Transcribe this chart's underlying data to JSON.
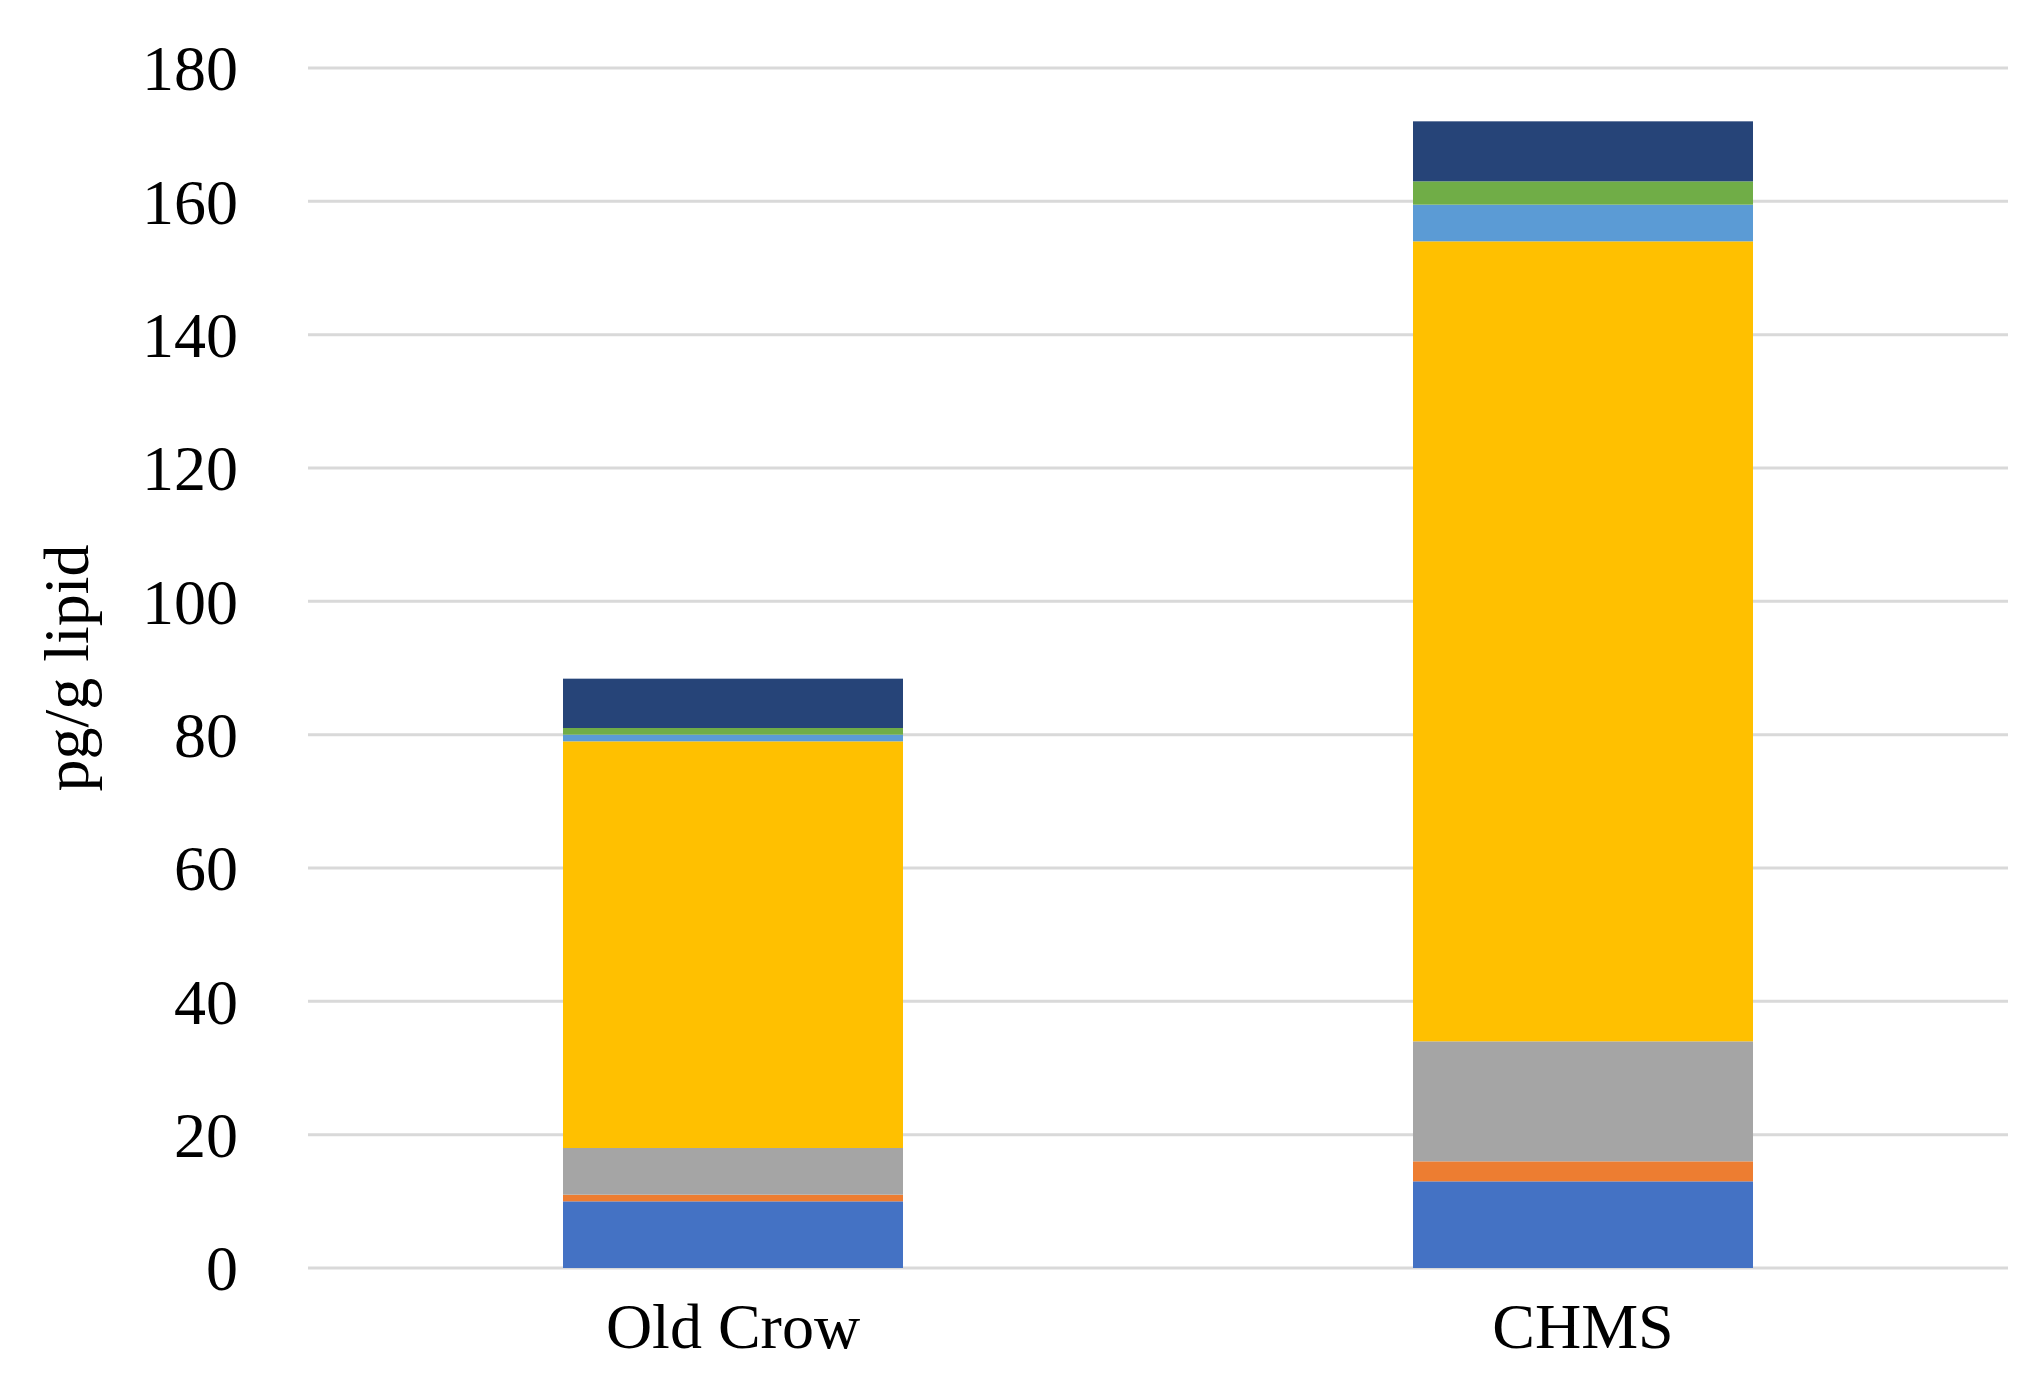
{
  "chart_data": {
    "type": "bar",
    "stacked": true,
    "ylabel": "pg/g lipid",
    "categories": [
      "Old Crow",
      "CHMS"
    ],
    "series": [
      {
        "color": "#4472c4",
        "values": [
          10,
          13
        ]
      },
      {
        "color": "#ed7d31",
        "values": [
          1,
          3
        ]
      },
      {
        "color": "#a5a5a5",
        "values": [
          7,
          18
        ]
      },
      {
        "color": "#ffc000",
        "values": [
          61,
          120
        ]
      },
      {
        "color": "#5b9bd5",
        "values": [
          1,
          5.5
        ]
      },
      {
        "color": "#70ad47",
        "values": [
          1,
          3.5
        ]
      },
      {
        "color": "#264478",
        "values": [
          7.4,
          9
        ]
      }
    ],
    "ylim": [
      0,
      180
    ],
    "yticks": [
      0,
      20,
      40,
      60,
      80,
      100,
      120,
      140,
      160,
      180
    ],
    "grid": "y"
  }
}
